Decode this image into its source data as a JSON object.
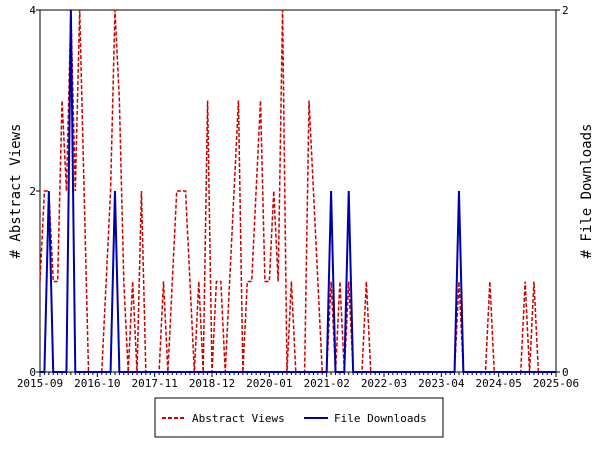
{
  "chart_data": {
    "type": "line",
    "ylabel": "# Abstract Views",
    "y2label": "# File Downloads",
    "categories": [
      "2015-09",
      null,
      null,
      null,
      null,
      null,
      null,
      null,
      null,
      null,
      null,
      null,
      null,
      "2016-10",
      null,
      null,
      null,
      null,
      null,
      null,
      null,
      null,
      null,
      null,
      null,
      null,
      "2017-11",
      null,
      null,
      null,
      null,
      null,
      null,
      null,
      null,
      null,
      null,
      null,
      null,
      "2018-12",
      null,
      null,
      null,
      null,
      null,
      null,
      null,
      null,
      null,
      null,
      null,
      null,
      "2020-01",
      null,
      null,
      null,
      null,
      null,
      null,
      null,
      null,
      null,
      null,
      null,
      null,
      "2021-02",
      null,
      null,
      null,
      null,
      null,
      null,
      null,
      null,
      null,
      null,
      null,
      null,
      "2022-03",
      null,
      null,
      null,
      null,
      null,
      null,
      null,
      null,
      null,
      null,
      null,
      null,
      "2023-04",
      null,
      null,
      null,
      null,
      null,
      null,
      null,
      null,
      null,
      null,
      null,
      null,
      "2024-05",
      null,
      null,
      null,
      null,
      null,
      null,
      null,
      null,
      null,
      null,
      null,
      null,
      "2025-06"
    ],
    "series": [
      {
        "name": "Abstract Views",
        "color": "#cc0000",
        "dash": true,
        "values": [
          1,
          2,
          2,
          1,
          1,
          3,
          2,
          4,
          2,
          4,
          2,
          0,
          0,
          0,
          0,
          1,
          2,
          4,
          3,
          1,
          0,
          1,
          0,
          2,
          0,
          0,
          0,
          0,
          1,
          0,
          1,
          2,
          2,
          2,
          1,
          0,
          1,
          0,
          3,
          0,
          1,
          1,
          0,
          1,
          2,
          3,
          0,
          1,
          1,
          2,
          3,
          1,
          1,
          2,
          1,
          4,
          0,
          1,
          0,
          0,
          0,
          3,
          2,
          1,
          0,
          0,
          1,
          0,
          1,
          0,
          1,
          0,
          0,
          0,
          1,
          0,
          0,
          0,
          0,
          0,
          0,
          0,
          0,
          0,
          0,
          0,
          0,
          0,
          0,
          0,
          0,
          0,
          0,
          0,
          0,
          1,
          0,
          0,
          0,
          0,
          0,
          0,
          1,
          0,
          0,
          0,
          0,
          0,
          0,
          0,
          1,
          0,
          1,
          0,
          0,
          0,
          0,
          0
        ]
      },
      {
        "name": "File Downloads",
        "color": "#0000aa",
        "dash": false,
        "axis": "y2",
        "values": [
          0,
          0,
          1,
          0,
          0,
          0,
          0,
          2,
          0,
          0,
          0,
          0,
          0,
          0,
          0,
          0,
          0,
          1,
          0,
          0,
          0,
          0,
          0,
          0,
          0,
          0,
          0,
          0,
          0,
          0,
          0,
          0,
          0,
          0,
          0,
          0,
          0,
          0,
          0,
          0,
          0,
          0,
          0,
          0,
          0,
          0,
          0,
          0,
          0,
          0,
          0,
          0,
          0,
          0,
          0,
          0,
          0,
          0,
          0,
          0,
          0,
          0,
          0,
          0,
          0,
          0,
          1,
          0,
          0,
          0,
          1,
          0,
          0,
          0,
          0,
          0,
          0,
          0,
          0,
          0,
          0,
          0,
          0,
          0,
          0,
          0,
          0,
          0,
          0,
          0,
          0,
          0,
          0,
          0,
          0,
          1,
          0,
          0,
          0,
          0,
          0,
          0,
          0,
          0,
          0,
          0,
          0,
          0,
          0,
          0,
          0,
          0,
          0,
          0,
          0,
          0,
          0,
          0
        ]
      }
    ],
    "ylim": [
      0,
      4
    ],
    "yticks": [
      0,
      2,
      4
    ],
    "y2lim": [
      0,
      2
    ],
    "y2ticks": [
      0,
      2
    ]
  }
}
